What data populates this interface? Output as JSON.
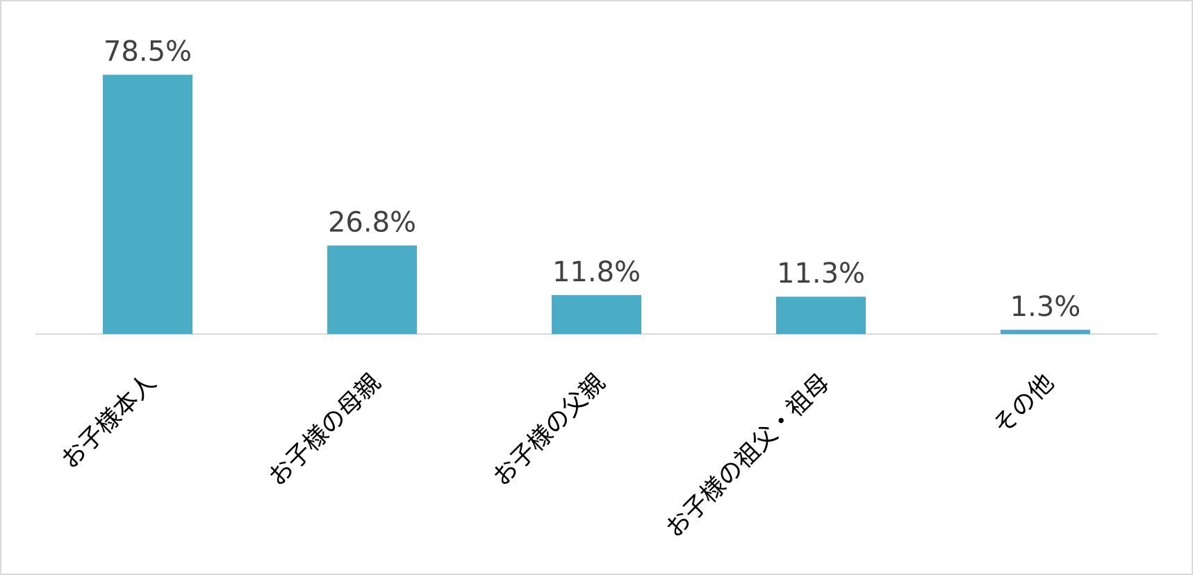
{
  "chart_data": {
    "type": "bar",
    "categories": [
      "お子様本人",
      "お子様の母親",
      "お子様の父親",
      "お子様の祖父・祖母",
      "その他"
    ],
    "values": [
      78.5,
      26.8,
      11.8,
      11.3,
      1.3
    ],
    "value_labels": [
      "78.5%",
      "26.8%",
      "11.8%",
      "11.3%",
      "1.3%"
    ],
    "color": "#4bacc6"
  }
}
